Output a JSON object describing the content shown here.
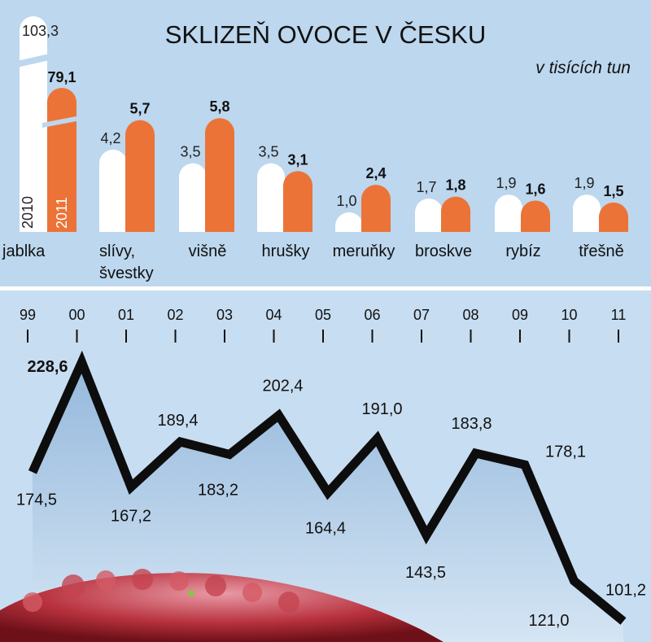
{
  "chart_data": [
    {
      "type": "bar",
      "title": "SKLIZEŇ OVOCE V ČESKU",
      "subtitle": "v tisících tun",
      "series": [
        {
          "name": "2010",
          "values": [
            103.3,
            4.2,
            3.5,
            3.5,
            1.0,
            1.7,
            1.9,
            1.9
          ],
          "labels": [
            "103,3",
            "4,2",
            "3,5",
            "3,5",
            "1,0",
            "1,7",
            "1,9",
            "1,9"
          ]
        },
        {
          "name": "2011",
          "values": [
            79.1,
            5.7,
            5.8,
            3.1,
            2.4,
            1.8,
            1.6,
            1.5
          ],
          "labels": [
            "79,1",
            "5,7",
            "5,8",
            "3,1",
            "2,4",
            "1,8",
            "1,6",
            "1,5"
          ]
        }
      ],
      "categories": [
        {
          "line1": "jablka",
          "line2": ""
        },
        {
          "line1": "slívy,",
          "line2": "švestky"
        },
        {
          "line1": "višně",
          "line2": ""
        },
        {
          "line1": "hrušky",
          "line2": ""
        },
        {
          "line1": "meruňky",
          "line2": ""
        },
        {
          "line1": "broskve",
          "line2": ""
        },
        {
          "line1": "rybíz",
          "line2": ""
        },
        {
          "line1": "třešně",
          "line2": ""
        }
      ],
      "axis_break": true,
      "colors": {
        "2010": "#ffffff",
        "2011": "#ec7337"
      }
    },
    {
      "type": "area",
      "x": [
        "99",
        "00",
        "01",
        "02",
        "03",
        "04",
        "05",
        "06",
        "07",
        "08",
        "09",
        "10",
        "11"
      ],
      "values": [
        174.5,
        228.6,
        167.2,
        189.4,
        183.2,
        202.4,
        164.4,
        191.0,
        143.5,
        183.8,
        178.1,
        121.0,
        101.2
      ],
      "labels": [
        "174,5",
        "228,6",
        "167,2",
        "189,4",
        "183,2",
        "202,4",
        "164,4",
        "191,0",
        "143,5",
        "183,8",
        "178,1",
        "121,0",
        "101,2"
      ],
      "ylim": [
        95,
        232
      ],
      "colors": {
        "line": "#0d0d0d",
        "fill_top": "#8fb4da",
        "fill_bottom": "#d6e6f4"
      }
    }
  ]
}
